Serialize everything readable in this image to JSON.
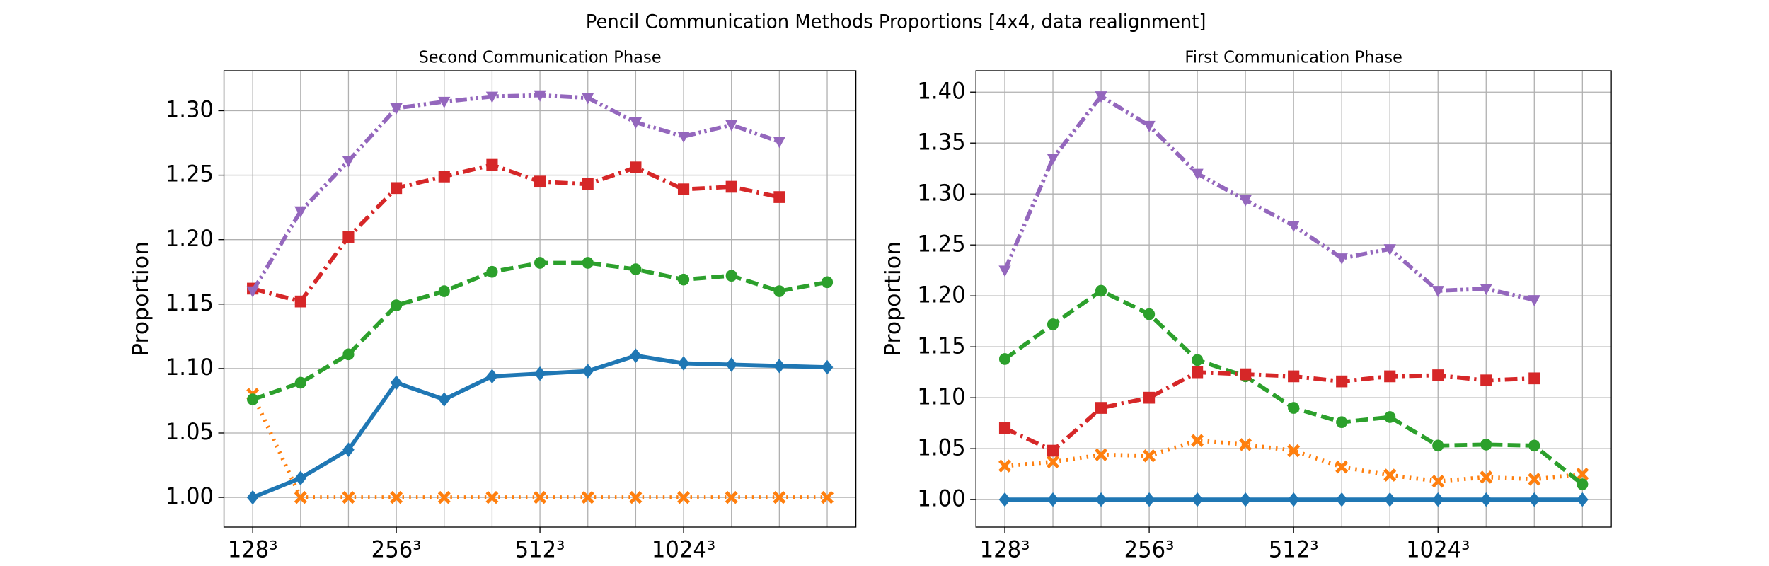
{
  "title": "Pencil Communication Methods Proportions [4x4, data realignment]",
  "chart_data": [
    {
      "type": "line",
      "title": "Second Communication Phase",
      "y_label": "Proportion",
      "categories": [
        "128³",
        null,
        null,
        "256³",
        null,
        null,
        "512³",
        null,
        null,
        "1024³",
        null,
        null,
        null
      ],
      "ylim": [
        0.977,
        1.331
      ],
      "yticks": [
        {
          "value": 1.0,
          "label": "1.00"
        },
        1.05,
        {
          "value": 1.1,
          "label": "1.10"
        },
        1.15,
        {
          "value": 1.2,
          "label": "1.20"
        },
        1.25,
        {
          "value": 1.3,
          "label": "1.30"
        }
      ],
      "grid": true,
      "series": [
        {
          "color": "#1f77b4",
          "marker": "diamond",
          "linestyle": "solid",
          "values": [
            1.0,
            1.015,
            1.037,
            1.089,
            1.076,
            1.094,
            1.096,
            1.098,
            1.11,
            1.104,
            1.103,
            1.102,
            1.101
          ]
        },
        {
          "color": "#ff7f0e",
          "marker": "x",
          "linestyle": "dotted",
          "values": [
            1.08,
            1.0,
            1.0,
            1.0,
            1.0,
            1.0,
            1.0,
            1.0,
            1.0,
            1.0,
            1.0,
            1.0,
            1.0
          ]
        },
        {
          "color": "#2ca02c",
          "marker": "circle",
          "linestyle": "dashed",
          "values": [
            1.076,
            1.089,
            1.111,
            1.149,
            1.16,
            1.175,
            1.182,
            1.182,
            1.177,
            1.169,
            1.172,
            1.16,
            1.167
          ]
        },
        {
          "color": "#d62728",
          "marker": "square",
          "linestyle": "dashdot",
          "values": [
            1.162,
            1.152,
            1.202,
            1.24,
            1.249,
            1.258,
            1.245,
            1.243,
            1.256,
            1.239,
            1.241,
            1.233,
            null
          ]
        },
        {
          "color": "#9467bd",
          "marker": "triangle-down",
          "linestyle": "dashdotdot",
          "values": [
            1.16,
            1.222,
            1.261,
            1.302,
            1.307,
            1.311,
            1.312,
            1.31,
            1.291,
            1.28,
            1.289,
            1.276,
            null
          ]
        }
      ]
    },
    {
      "type": "line",
      "title": "First Communication Phase",
      "y_label": "Proportion",
      "categories": [
        "128³",
        null,
        null,
        "256³",
        null,
        null,
        "512³",
        null,
        null,
        "1024³",
        null,
        null,
        null
      ],
      "ylim": [
        0.973,
        1.421
      ],
      "yticks": [
        {
          "value": 1.0,
          "label": "1.00"
        },
        1.05,
        {
          "value": 1.1,
          "label": "1.10"
        },
        1.15,
        {
          "value": 1.2,
          "label": "1.20"
        },
        1.25,
        {
          "value": 1.3,
          "label": "1.30"
        },
        1.35,
        {
          "value": 1.4,
          "label": "1.40"
        }
      ],
      "grid": true,
      "series": [
        {
          "color": "#1f77b4",
          "marker": "diamond",
          "linestyle": "solid",
          "values": [
            1.0,
            1.0,
            1.0,
            1.0,
            1.0,
            1.0,
            1.0,
            1.0,
            1.0,
            1.0,
            1.0,
            1.0,
            1.0
          ]
        },
        {
          "color": "#ff7f0e",
          "marker": "x",
          "linestyle": "dotted",
          "values": [
            1.033,
            1.037,
            1.044,
            1.043,
            1.058,
            1.054,
            1.048,
            1.032,
            1.024,
            1.018,
            1.022,
            1.02,
            1.025
          ]
        },
        {
          "color": "#2ca02c",
          "marker": "circle",
          "linestyle": "dashed",
          "values": [
            1.138,
            1.172,
            1.205,
            1.182,
            1.137,
            1.121,
            1.09,
            1.076,
            1.081,
            1.053,
            1.054,
            1.053,
            1.015
          ]
        },
        {
          "color": "#d62728",
          "marker": "square",
          "linestyle": "dashdot",
          "values": [
            1.07,
            1.048,
            1.09,
            1.1,
            1.125,
            1.123,
            1.121,
            1.116,
            1.121,
            1.122,
            1.117,
            1.119,
            null
          ]
        },
        {
          "color": "#9467bd",
          "marker": "triangle-down",
          "linestyle": "dashdotdot",
          "values": [
            1.225,
            1.335,
            1.396,
            1.367,
            1.32,
            1.294,
            1.269,
            1.237,
            1.246,
            1.205,
            1.207,
            1.196,
            null
          ]
        }
      ]
    }
  ]
}
